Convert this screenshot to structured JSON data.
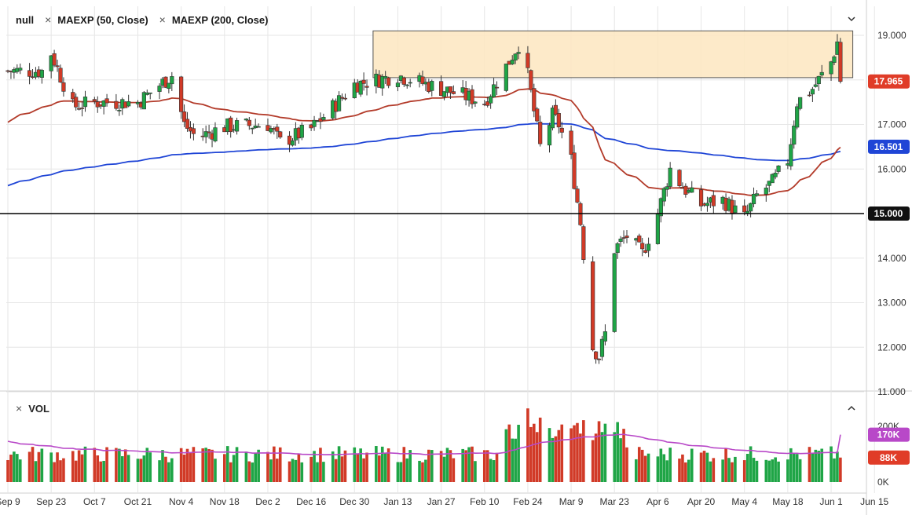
{
  "legend": {
    "symbol": "null",
    "ma50": "MAEXP (50, Close)",
    "ma200": "MAEXP (200, Close)",
    "close_glyph": "×"
  },
  "volume_panel": {
    "label": "VOL",
    "close_glyph": "×"
  },
  "icons": {
    "collapse_main": "chevron-down-icon",
    "collapse_volume": "chevron-up-icon"
  },
  "colors": {
    "up": "#1fa546",
    "down": "#d13a27",
    "ma50": "#b33b2a",
    "ma200": "#1f45d6",
    "vol_ma": "#b848c8",
    "zone_fill": "#fde6c0",
    "zone_stroke": "#555555",
    "last_price_bg": "#e03c28",
    "ma200_badge_bg": "#1f45d6",
    "hline_badge_bg": "#111111",
    "grid": "#e6e6e6"
  },
  "chart_data": [
    {
      "type": "candlestick",
      "title": "",
      "ylim": [
        11.0,
        19.2
      ],
      "y_ticks": [
        "19.000",
        "18.000",
        "17.000",
        "16.000",
        "15.000",
        "14.000",
        "13.000",
        "12.000",
        "11.000"
      ],
      "x_ticks": [
        "Sep 9",
        "Sep 23",
        "Oct 7",
        "Oct 21",
        "Nov 4",
        "Nov 18",
        "Dec 2",
        "Dec 16",
        "Dec 30",
        "Jan 13",
        "Jan 27",
        "Feb 10",
        "Feb 24",
        "Mar 9",
        "Mar 23",
        "Apr 6",
        "Apr 20",
        "May 4",
        "May 18",
        "Jun 1",
        "Jun 15"
      ],
      "grid": true,
      "last_close": 17.965,
      "series_anchors": [
        {
          "date": "Sep 9",
          "close": 18.2
        },
        {
          "date": "Sep 20",
          "close": 18.2
        },
        {
          "date": "Sep 23",
          "close": 18.6
        },
        {
          "date": "Sep 30",
          "close": 17.4
        },
        {
          "date": "Oct 7",
          "close": 17.5
        },
        {
          "date": "Oct 21",
          "close": 17.5
        },
        {
          "date": "Nov 1",
          "close": 18.1
        },
        {
          "date": "Nov 5",
          "close": 17.0
        },
        {
          "date": "Nov 9",
          "close": 16.7
        },
        {
          "date": "Nov 18",
          "close": 16.95
        },
        {
          "date": "Dec 2",
          "close": 17.0
        },
        {
          "date": "Dec 6",
          "close": 16.6
        },
        {
          "date": "Dec 16",
          "close": 16.9
        },
        {
          "date": "Dec 26",
          "close": 17.6
        },
        {
          "date": "Dec 30",
          "close": 17.9
        },
        {
          "date": "Jan 13",
          "close": 18.1
        },
        {
          "date": "Jan 27",
          "close": 17.8
        },
        {
          "date": "Feb 10",
          "close": 17.5
        },
        {
          "date": "Feb 17",
          "close": 18.3
        },
        {
          "date": "Feb 21",
          "close": 18.8
        },
        {
          "date": "Feb 24",
          "close": 18.1
        },
        {
          "date": "Feb 28",
          "close": 16.5
        },
        {
          "date": "Mar 3",
          "close": 17.2
        },
        {
          "date": "Mar 5",
          "close": 17.0
        },
        {
          "date": "Mar 9",
          "close": 16.2
        },
        {
          "date": "Mar 12",
          "close": 14.8
        },
        {
          "date": "Mar 16",
          "close": 12.0
        },
        {
          "date": "Mar 18",
          "close": 11.8
        },
        {
          "date": "Mar 20",
          "close": 12.3
        },
        {
          "date": "Mar 23",
          "close": 14.2
        },
        {
          "date": "Mar 27",
          "close": 14.5
        },
        {
          "date": "Apr 1",
          "close": 14.1
        },
        {
          "date": "Apr 6",
          "close": 15.0
        },
        {
          "date": "Apr 10",
          "close": 16.0
        },
        {
          "date": "Apr 14",
          "close": 15.6
        },
        {
          "date": "Apr 20",
          "close": 15.2
        },
        {
          "date": "Apr 27",
          "close": 15.3
        },
        {
          "date": "May 4",
          "close": 14.9
        },
        {
          "date": "May 8",
          "close": 15.4
        },
        {
          "date": "May 13",
          "close": 15.7
        },
        {
          "date": "May 18",
          "close": 16.2
        },
        {
          "date": "May 21",
          "close": 17.5
        },
        {
          "date": "May 26",
          "close": 17.8
        },
        {
          "date": "Jun 1",
          "close": 18.4
        },
        {
          "date": "Jun 3",
          "close": 18.85
        },
        {
          "date": "Jun 4",
          "close": 17.965
        }
      ],
      "overlays": [
        {
          "name": "MAEXP (50, Close)",
          "last": null
        },
        {
          "name": "MAEXP (200, Close)",
          "last": 16.501
        }
      ],
      "horizontal_line": 15.0,
      "resistance_zone": {
        "from_date": "Jan 5",
        "to_date": "Jun 8",
        "low": 18.05,
        "high": 19.1
      },
      "price_labels": [
        "17.965",
        "16.501",
        "15.000"
      ]
    },
    {
      "type": "bar",
      "title": "VOL",
      "y_ticks": [
        "200K",
        "0K"
      ],
      "ylim": [
        0,
        210000
      ],
      "series": [
        {
          "name": "VOL",
          "last": 88000
        },
        {
          "name": "VOL MA",
          "last": 170000
        }
      ],
      "value_labels": [
        "170K",
        "88K"
      ]
    }
  ]
}
